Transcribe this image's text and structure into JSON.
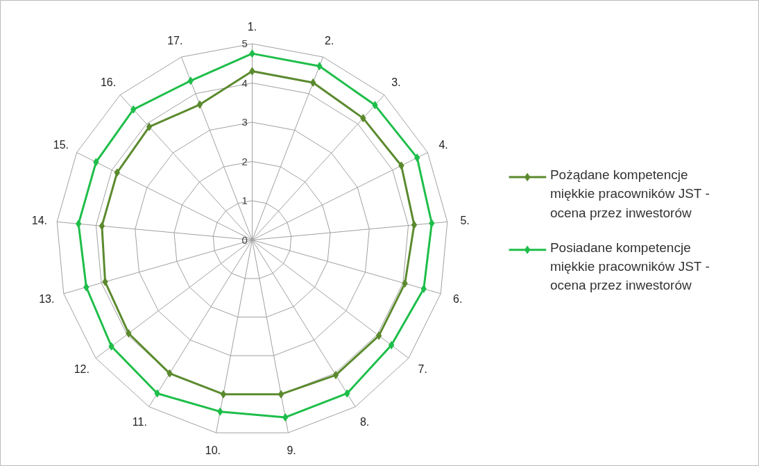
{
  "chart_data": {
    "type": "radar",
    "categories": [
      "1.",
      "2.",
      "3.",
      "4.",
      "5.",
      "6.",
      "7.",
      "8.",
      "9.",
      "10.",
      "11.",
      "12.",
      "13.",
      "14.",
      "15.",
      "16.",
      "17."
    ],
    "ylim": [
      0,
      5
    ],
    "yticks": [
      0,
      1,
      2,
      3,
      4,
      5
    ],
    "grid": true,
    "legend": "right",
    "marker": "diamond",
    "series": [
      {
        "name": "Pożądane kompetencje miękkie pracowników JST - ocena przez inwestorów",
        "color": "#5b8a2e",
        "values": [
          4.3,
          4.3,
          4.2,
          4.25,
          4.15,
          4.05,
          4.05,
          4.05,
          4.0,
          4.0,
          4.0,
          3.95,
          3.9,
          3.85,
          3.85,
          3.9,
          3.7
        ]
      },
      {
        "name": "Posiadane kompetencje miękkie pracowników JST - ocena przez inwestorów",
        "color": "#1ebe4a",
        "values": [
          4.75,
          4.75,
          4.65,
          4.7,
          4.6,
          4.55,
          4.45,
          4.6,
          4.6,
          4.45,
          4.6,
          4.5,
          4.4,
          4.45,
          4.45,
          4.5,
          4.35
        ]
      }
    ]
  }
}
